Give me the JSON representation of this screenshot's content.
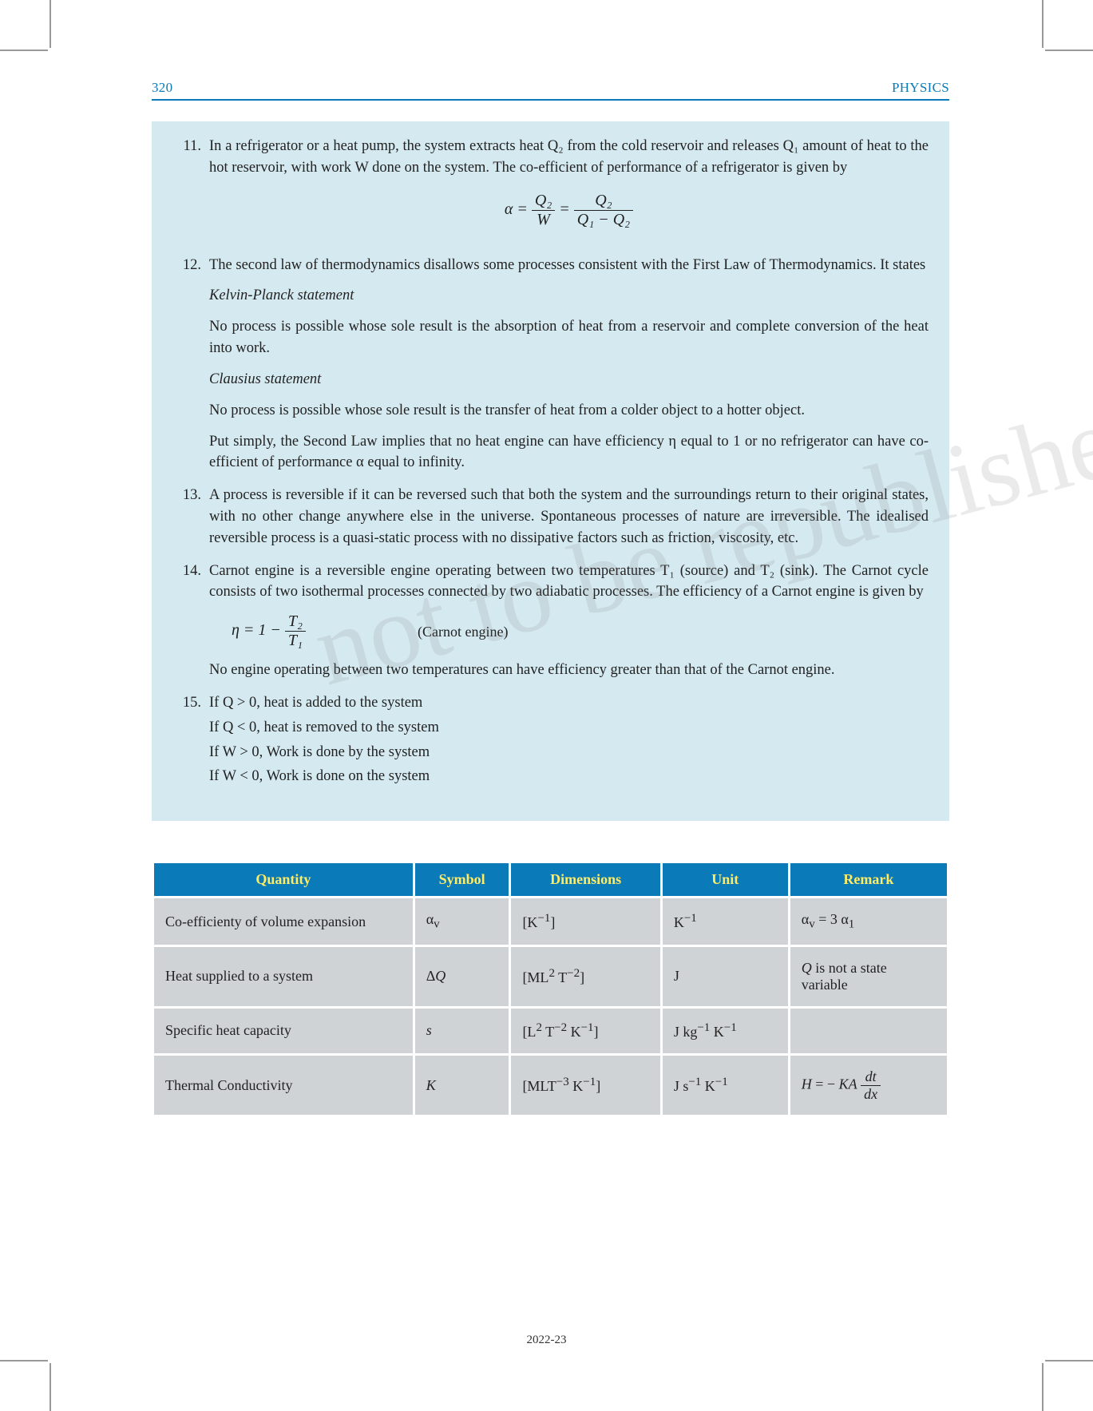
{
  "header": {
    "page_no": "320",
    "subject": "PHYSICS",
    "rule_color": "#0a7ab8"
  },
  "box_bg": "#d5e9f0",
  "items": [
    {
      "n": "11.",
      "paras": [
        "In a refrigerator or a heat pump, the system extracts heat Q₂ from the cold reservoir and releases Q₁ amount of heat to the hot reservoir, with work W done on the system.  The co-efficient of performance of a refrigerator is given by"
      ],
      "equation_html": "α = <span class='frac'><span class='top'>Q₂</span><span class='bot'>W</span></span> = <span class='frac'><span class='top'>Q₂</span><span class='bot'>Q₁ − Q₂</span></span>"
    },
    {
      "n": "12.",
      "paras": [
        "The second law of thermodynamics disallows some processes consistent with the First Law of Thermodynamics. It states",
        "<span class='ital'>Kelvin-Planck statement</span>",
        "No process is possible whose sole result is the absorption of heat from a reservoir and complete conversion of the heat into work.",
        "<span class='ital'>Clausius statement</span>",
        "No process is possible whose sole result is the transfer of heat from a colder object to a hotter object.",
        "Put simply, the Second Law implies that no heat engine can have efficiency η equal to 1 or no refrigerator can have co-efficient of performance α equal to infinity."
      ]
    },
    {
      "n": "13.",
      "paras": [
        "A process is reversible if it can be reversed such that both the system and the surroundings return to their original states, with no other change anywhere else in the universe. Spontaneous processes of nature are irreversible. The idealised reversible process is a quasi-static process with no dissipative factors such as friction, viscosity, etc."
      ]
    },
    {
      "n": "14.",
      "paras": [
        "Carnot engine is a reversible engine operating between two temperatures T₁ (source) and T₂ (sink). The Carnot cycle consists of two isothermal processes connected by two adiabatic processes. The efficiency of a Carnot engine is given by"
      ],
      "eq_inline": {
        "lhs_html": "η = 1 − <span class='frac'><span class='top'>T₂</span><span class='bot'>T₁</span></span>",
        "note": "(Carnot engine)"
      },
      "paras_after": [
        "No engine operating between two temperatures can have efficiency greater than that of the Carnot engine."
      ]
    },
    {
      "n": "15.",
      "paras": [
        "If Q > 0, heat is added to the system",
        "If Q < 0, heat is removed to the system",
        "If W > 0, Work is done by the system",
        "If W < 0, Work is done on the system"
      ],
      "tight": true
    }
  ],
  "watermark": "not to be republished",
  "table": {
    "header_bg": "#0a7ab8",
    "header_fg": "#ffec66",
    "cell_bg": "#cfd3d6",
    "columns": [
      "Quantity",
      "Symbol",
      "Dimensions",
      "Unit",
      "Remark"
    ],
    "col_widths": [
      "33%",
      "12%",
      "19%",
      "16%",
      "20%"
    ],
    "rows": [
      [
        "Co-efficienty of volume expansion",
        "α<sub>v</sub>",
        "[K<sup>−1</sup>]",
        "K<sup>−1</sup>",
        "α<sub>v</sub> = 3 α<sub>1</sub>"
      ],
      [
        "Heat supplied to a system",
        "Δ<span class='ital'>Q</span>",
        "[ML<sup>2</sup> T<sup>−2</sup>]",
        "J",
        "<span class='ital'>Q</span> is not a state variable"
      ],
      [
        "Specific heat capacity",
        "<span class='ital'>s</span>",
        "[L<sup>2</sup> T<sup>−2</sup> K<sup>−1</sup>]",
        "J kg<sup>−1</sup> K<sup>−1</sup>",
        ""
      ],
      [
        "Thermal Conductivity",
        "<span class='ital'>K</span>",
        "[MLT<sup>−3</sup> K<sup>−1</sup>]",
        "J s<sup>−1</sup> K<sup>−1</sup>",
        "<span class='ital'>H</span> = − <span class='ital'>KA</span> <span class='frac'><span class='top'>d<span class='ital'>t</span></span><span class='bot'>d<span class='ital'>x</span></span></span>"
      ]
    ]
  },
  "footer_year": "2022-23"
}
